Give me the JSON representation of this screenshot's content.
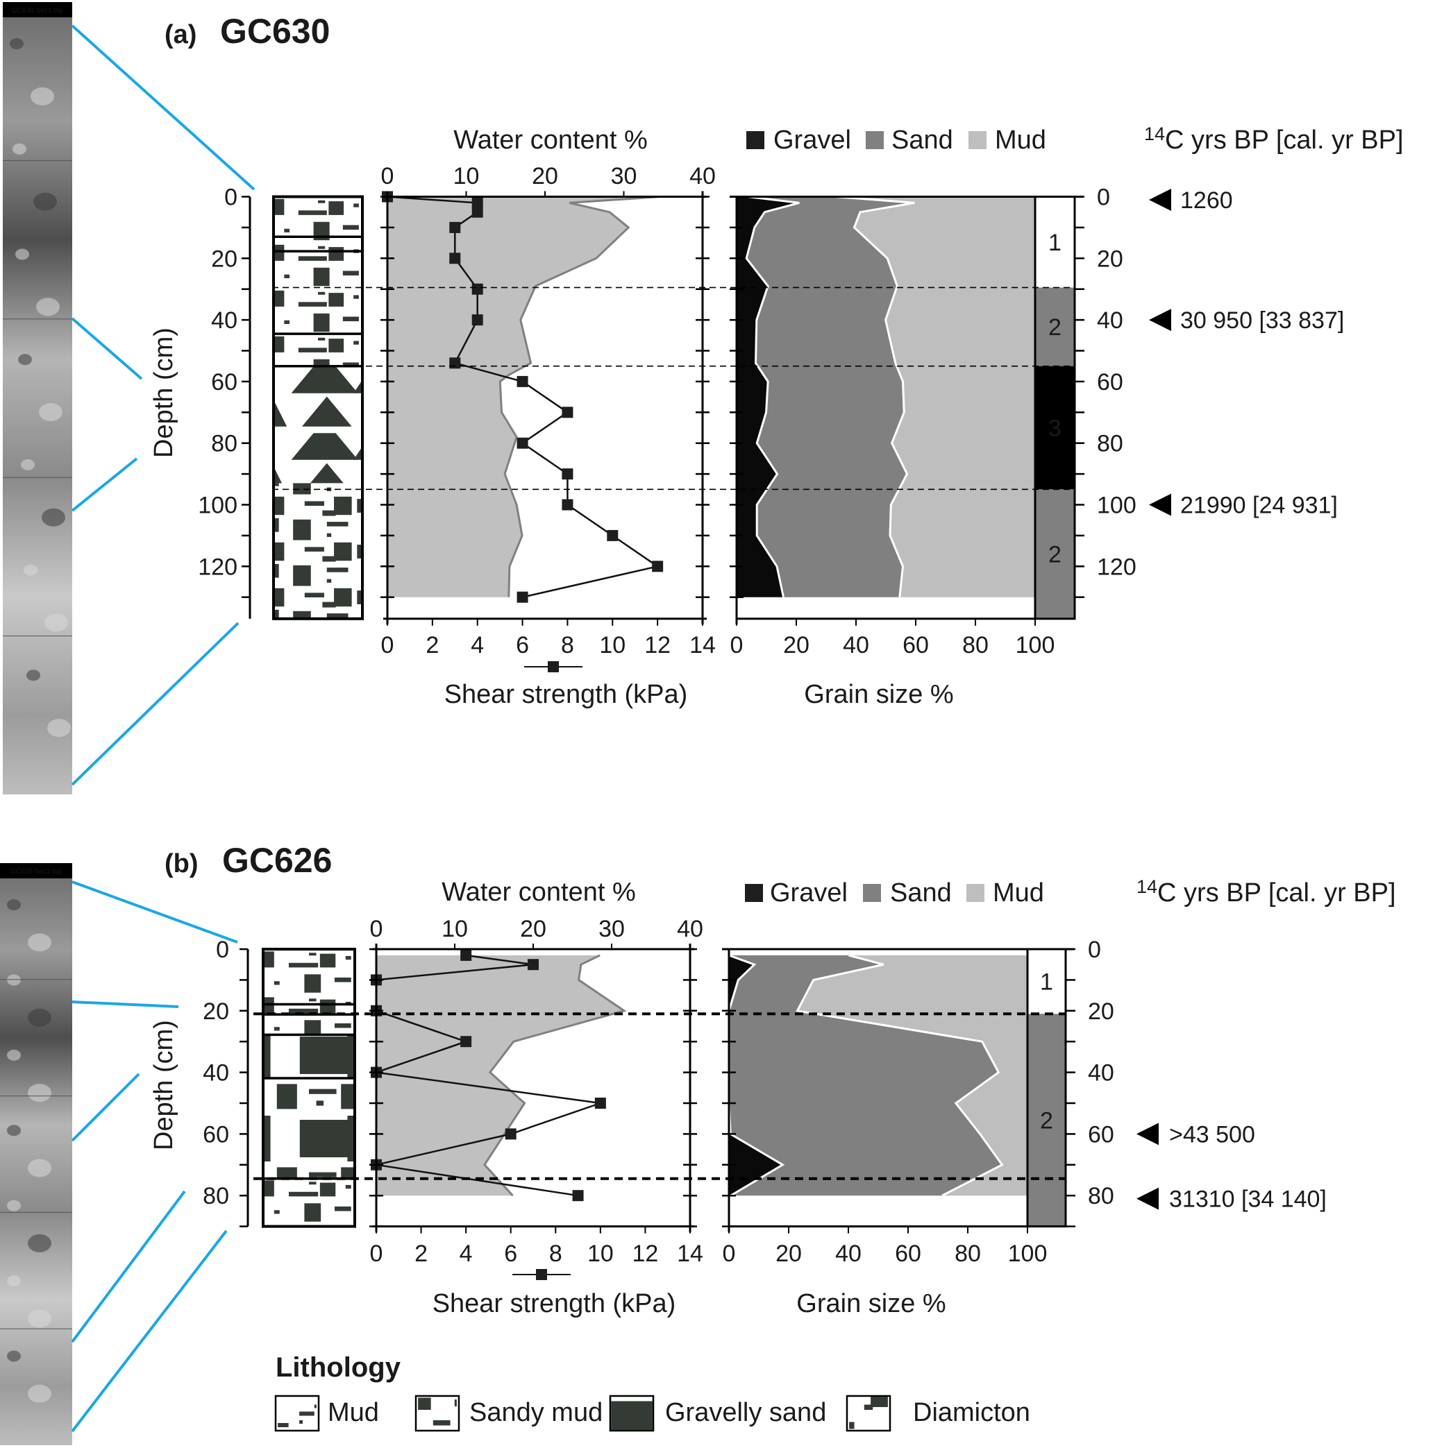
{
  "panels": [
    {
      "label": "(a)",
      "core": "GC630",
      "photo_label": "GC630 Sec1 top",
      "c14_label": {
        "superscript": "14",
        "text": "C yrs BP [cal. yr BP]"
      },
      "depth_label": "Depth (cm)",
      "ages": [
        {
          "depth": 1,
          "text": "1260"
        },
        {
          "depth": 40,
          "text": "30 950 [33 837]"
        },
        {
          "depth": 100,
          "text": "21990 [24 931]"
        }
      ],
      "horizons": [
        29.5,
        55,
        95
      ],
      "lithology": [
        {
          "from": 0,
          "to": 55,
          "pattern": "sandy-mud"
        },
        {
          "from": 55,
          "to": 93,
          "pattern": "triangles"
        },
        {
          "from": 93,
          "to": 137,
          "pattern": "diamicton"
        }
      ],
      "section_breaks": [
        13,
        17.7,
        44.5,
        55
      ]
    },
    {
      "label": "(b)",
      "core": "GC626",
      "photo_label": "GC626 Sec1 top",
      "c14_label": {
        "superscript": "14",
        "text": "C yrs BP [cal. yr BP]"
      },
      "depth_label": "Depth (cm)",
      "ages": [
        {
          "depth": 60,
          "text": ">43 500"
        },
        {
          "depth": 81,
          "text": "31310 [34 140]"
        }
      ],
      "horizons": [
        21,
        74.5
      ],
      "lithology": [
        {
          "from": 0,
          "to": 27.8,
          "pattern": "sandy-mud"
        },
        {
          "from": 27.8,
          "to": 74.5,
          "pattern": "gravelly-sand"
        },
        {
          "from": 74.5,
          "to": 90,
          "pattern": "sandy-mud"
        }
      ],
      "section_breaks": [
        17.9,
        21.2,
        27.8,
        41.9,
        74.5
      ]
    }
  ],
  "grain_legend": [
    {
      "name": "Gravel",
      "color": "#1e1e1e"
    },
    {
      "name": "Sand",
      "color": "#808080"
    },
    {
      "name": "Mud",
      "color": "#bebebe"
    }
  ],
  "lithology_legend": {
    "title": "Lithology",
    "items": [
      {
        "name": "Mud",
        "pattern": "mud"
      },
      {
        "name": "Sandy mud",
        "pattern": "sandy-mud"
      },
      {
        "name": "Gravelly sand",
        "pattern": "gravelly-sand"
      },
      {
        "name": "Diamicton",
        "pattern": "diamicton"
      }
    ]
  },
  "chart_data": [
    {
      "panel": "(a)",
      "type": "line",
      "ylabel": "Depth (cm)",
      "ylim": [
        0,
        137
      ],
      "y_inverted": true,
      "y_ticks": [
        0,
        20,
        40,
        60,
        80,
        100,
        120
      ],
      "x_top": {
        "label": "Water content %",
        "lim": [
          0,
          40
        ],
        "ticks": [
          0,
          10,
          20,
          30,
          40
        ]
      },
      "x_bottom": {
        "label": "Shear strength (kPa)",
        "lim": [
          0,
          14
        ],
        "ticks": [
          0,
          2,
          4,
          6,
          8,
          10,
          12,
          14
        ]
      },
      "series": [
        {
          "axis": "top",
          "style": "filled-area",
          "color": "#c0c0c0",
          "line_color": "#808080",
          "depth": [
            0,
            2,
            5,
            10,
            20,
            29,
            40,
            54,
            58,
            60,
            70,
            78,
            90,
            100,
            110,
            120,
            130
          ],
          "values": [
            34.7,
            23.1,
            28.2,
            30.6,
            26.5,
            18.8,
            16.9,
            18.2,
            15.3,
            14.3,
            14.5,
            16.4,
            14.9,
            16.4,
            17.1,
            15.5,
            15.4
          ]
        },
        {
          "axis": "bottom",
          "style": "line-square-markers",
          "color": "#1e1e1e",
          "depth": [
            0,
            2,
            5,
            10,
            20,
            30,
            40,
            54,
            60,
            70,
            80,
            90,
            100,
            110,
            120,
            130
          ],
          "values": [
            0,
            4,
            4,
            3,
            3,
            4,
            4,
            3,
            6,
            8,
            6,
            8,
            8,
            10,
            12,
            6
          ]
        }
      ]
    },
    {
      "panel": "(a)",
      "type": "area",
      "stacked": true,
      "xlabel": "Grain size %",
      "xlim": [
        0,
        100
      ],
      "x_ticks": [
        0,
        20,
        40,
        60,
        80,
        100
      ],
      "ylim": [
        0,
        137
      ],
      "y_ticks_right": [
        0,
        20,
        40,
        60,
        80,
        100,
        120
      ],
      "depth": [
        0,
        2,
        5,
        10,
        20,
        29,
        40,
        54,
        60,
        70,
        80,
        90,
        100,
        110,
        120,
        130
      ],
      "series": [
        {
          "name": "Gravel",
          "color": "#0a0a0a",
          "values": [
            3.7,
            21,
            9.4,
            6,
            3.3,
            10.5,
            6.7,
            6.4,
            10.5,
            9.9,
            6.8,
            13.6,
            6.8,
            6.8,
            13.5,
            15.7
          ]
        },
        {
          "name": "Sand",
          "color": "#808080",
          "values": [
            29.2,
            38.6,
            32.0,
            33.4,
            47.2,
            43.3,
            43.2,
            46.8,
            45.2,
            46.2,
            45.2,
            43.5,
            44.9,
            44.6,
            42.2,
            38.9
          ]
        },
        {
          "name": "Mud",
          "color": "#bebebe",
          "values": [
            67.1,
            40.4,
            58.6,
            60.6,
            49.5,
            46.2,
            50.1,
            46.8,
            44.3,
            43.9,
            48.0,
            42.9,
            48.3,
            48.6,
            44.3,
            45.4
          ]
        }
      ],
      "units": [
        {
          "label": "1",
          "from": 0,
          "to": 29.5,
          "color": "#ffffff",
          "text_color": "#1a1a1a"
        },
        {
          "label": "2",
          "from": 29.5,
          "to": 55,
          "color": "#808080",
          "text_color": "#1a1a1a"
        },
        {
          "label": "3",
          "from": 55,
          "to": 95,
          "color": "#000000",
          "text_color": "#ffffff"
        },
        {
          "label": "2",
          "from": 95,
          "to": 137,
          "color": "#808080",
          "text_color": "#1a1a1a"
        }
      ]
    },
    {
      "panel": "(b)",
      "type": "line",
      "ylabel": "Depth (cm)",
      "ylim": [
        0,
        90
      ],
      "y_inverted": true,
      "y_ticks": [
        0,
        20,
        40,
        60,
        80
      ],
      "x_top": {
        "label": "Water content %",
        "lim": [
          0,
          40
        ],
        "ticks": [
          0,
          10,
          20,
          30,
          40
        ]
      },
      "x_bottom": {
        "label": "Shear strength (kPa)",
        "lim": [
          0,
          14
        ],
        "ticks": [
          0,
          2,
          4,
          6,
          8,
          10,
          12,
          14
        ]
      },
      "series": [
        {
          "axis": "top",
          "style": "filled-area",
          "color": "#c0c0c0",
          "line_color": "#808080",
          "depth": [
            2,
            5,
            10,
            20,
            30,
            40,
            50,
            70,
            80
          ],
          "values": [
            28.5,
            26.1,
            25.8,
            31.6,
            17.5,
            14.5,
            18.9,
            13.8,
            17.4
          ]
        },
        {
          "axis": "bottom",
          "style": "line-square-markers",
          "color": "#1e1e1e",
          "depth": [
            2,
            5,
            10,
            20,
            30,
            40,
            50,
            60,
            70,
            80
          ],
          "values": [
            4,
            7,
            0,
            0,
            4,
            0,
            10,
            6,
            0,
            9
          ]
        }
      ]
    },
    {
      "panel": "(b)",
      "type": "area",
      "stacked": true,
      "xlabel": "Grain size %",
      "xlim": [
        0,
        100
      ],
      "x_ticks": [
        0,
        20,
        40,
        60,
        80,
        100
      ],
      "ylim": [
        0,
        90
      ],
      "y_ticks_right": [
        0,
        20,
        40,
        60,
        80
      ],
      "depth": [
        2,
        5,
        10,
        20,
        30,
        40,
        50,
        60,
        70,
        80
      ],
      "series": [
        {
          "name": "Gravel",
          "color": "#0a0a0a",
          "values": [
            0,
            8.5,
            3.1,
            0,
            0,
            0,
            0,
            0.5,
            18,
            0.6
          ]
        },
        {
          "name": "Sand",
          "color": "#808080",
          "values": [
            40.1,
            43.3,
            25.2,
            22.9,
            84.8,
            90.3,
            76.0,
            83.6,
            73.5,
            70.8
          ]
        },
        {
          "name": "Mud",
          "color": "#bebebe",
          "values": [
            59.9,
            48.2,
            71.7,
            77.1,
            15.2,
            9.7,
            24.0,
            15.9,
            8.5,
            28.6
          ]
        }
      ],
      "units": [
        {
          "label": "1",
          "from": 0,
          "to": 21,
          "color": "#ffffff",
          "text_color": "#1a1a1a"
        },
        {
          "label": "2",
          "from": 21,
          "to": 90,
          "color": "#808080",
          "text_color": "#1a1a1a"
        }
      ]
    }
  ]
}
